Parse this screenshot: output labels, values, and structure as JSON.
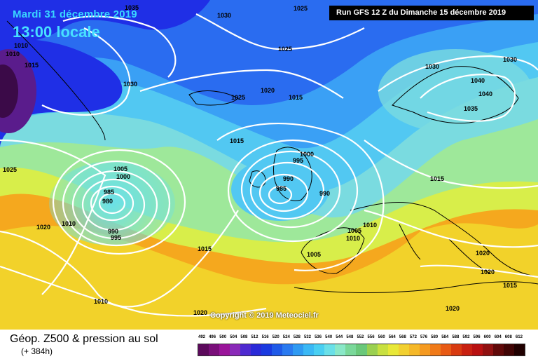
{
  "header": {
    "date_line": "Mardi 31 décembre 2019",
    "time_line": "13:00 locale",
    "run_info": "Run GFS 12 Z du Dimanche 15 décembre 2019"
  },
  "footer": {
    "legend_title": "Géop. Z500 & pression au sol",
    "forecast_hour": "(+ 384h)",
    "copyright": "Copyright © 2019 Meteociel.fr"
  },
  "scale": {
    "values": [
      "492",
      "496",
      "500",
      "504",
      "508",
      "512",
      "516",
      "520",
      "524",
      "528",
      "532",
      "536",
      "540",
      "544",
      "548",
      "552",
      "556",
      "560",
      "564",
      "568",
      "572",
      "576",
      "580",
      "584",
      "588",
      "592",
      "596",
      "600",
      "604",
      "608",
      "612"
    ],
    "colors": [
      "#5c0a5c",
      "#7a0f7a",
      "#9a149a",
      "#8a2ab8",
      "#4e2ad0",
      "#2a2ad8",
      "#1a3ae0",
      "#1f5ae8",
      "#2a7af0",
      "#2f9af2",
      "#3ab8f5",
      "#49cff2",
      "#6ae0e8",
      "#8ae8c8",
      "#7ad89a",
      "#6ac87a",
      "#9ad050",
      "#c8e040",
      "#e8e838",
      "#f2d030",
      "#f5b828",
      "#f59a20",
      "#f07a18",
      "#e85a14",
      "#d83a10",
      "#c82010",
      "#b81010",
      "#901010",
      "#600808",
      "#400404",
      "#200000"
    ]
  },
  "map_layers": {
    "geopotential_fill_palette": [
      "#3b0a48",
      "#5a1c8c",
      "#1f2fe6",
      "#2a6cf0",
      "#3aa0f5",
      "#52c8f2",
      "#7adbe0",
      "#9ee89a",
      "#d8ee4a",
      "#f2d22a",
      "#f5a81e",
      "#f07818"
    ],
    "isobar_color": "#ffffff",
    "coastline_color": "#000000"
  },
  "isobar_labels": [
    "1035",
    "1030",
    "1025",
    "1010",
    "1010",
    "1015",
    "1030",
    "1025",
    "1025",
    "1020",
    "1015",
    "1025",
    "1030",
    "1040",
    "1040",
    "1035",
    "1015",
    "1000",
    "995",
    "1005",
    "1000",
    "985",
    "980",
    "990",
    "995",
    "990",
    "985",
    "990",
    "1020",
    "1010",
    "1015",
    "1010",
    "1005",
    "1005",
    "1010",
    "1015",
    "1010",
    "1020",
    "1020",
    "1020",
    "1020",
    "1015",
    "1030"
  ]
}
